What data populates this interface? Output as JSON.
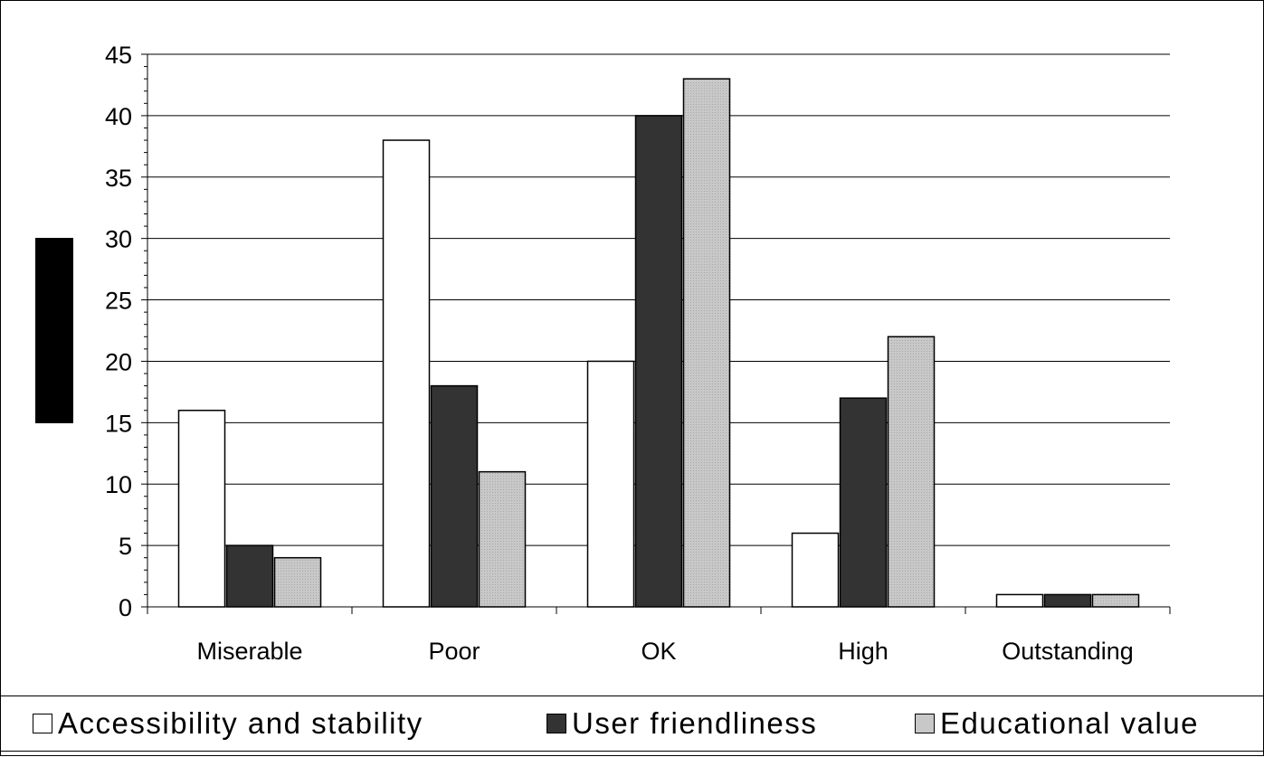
{
  "chart_data": {
    "type": "bar",
    "categories": [
      "Miserable",
      "Poor",
      "OK",
      "High",
      "Outstanding"
    ],
    "series": [
      {
        "name": "Accessibility and stability",
        "values": [
          16,
          38,
          20,
          6,
          1
        ],
        "color": "#ffffff"
      },
      {
        "name": "User friendliness",
        "values": [
          5,
          18,
          40,
          17,
          1
        ],
        "color": "#333333"
      },
      {
        "name": "Educational value",
        "values": [
          4,
          11,
          43,
          22,
          1
        ],
        "color": "#c8c8c8"
      }
    ],
    "ylim": [
      0,
      45
    ],
    "yticks": [
      "0",
      "5",
      "10",
      "15",
      "20",
      "25",
      "30",
      "35",
      "40",
      "45"
    ],
    "grid": true,
    "legend_position": "bottom",
    "title": "",
    "xlabel": "",
    "ylabel": ""
  }
}
